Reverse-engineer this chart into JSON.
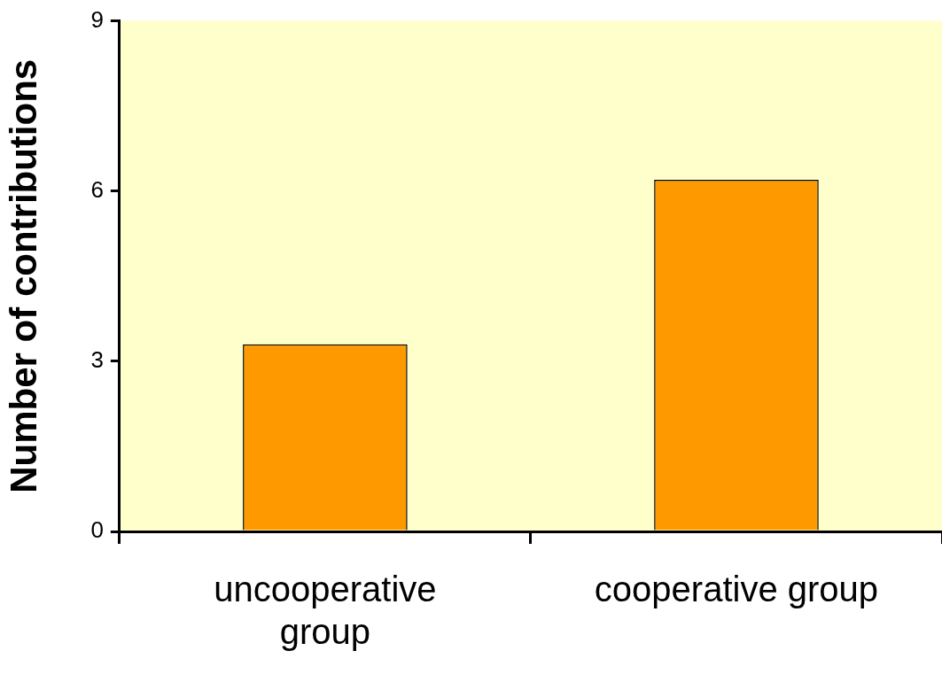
{
  "chart_data": {
    "type": "bar",
    "ylabel": "Number of contributions",
    "categories": [
      "uncooperative group",
      "cooperative group"
    ],
    "values": [
      3.3,
      6.2
    ],
    "color": "#ff9900",
    "ylim": [
      0,
      9
    ],
    "yticks": [
      0,
      3,
      6,
      9
    ],
    "grid": false,
    "legend": false
  }
}
